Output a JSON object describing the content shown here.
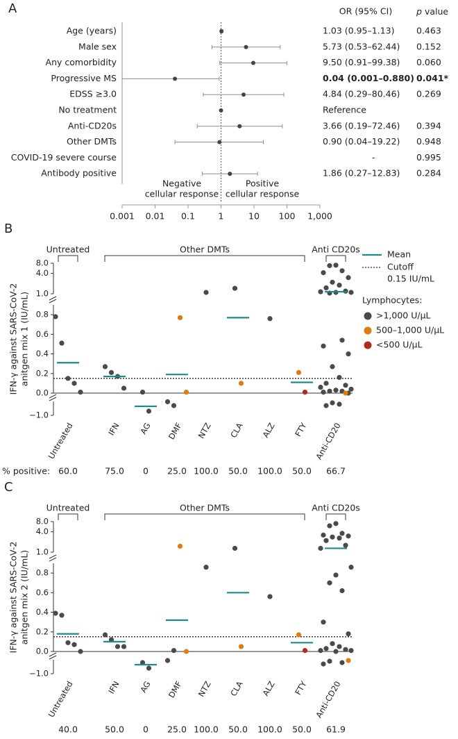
{
  "chart_data": [
    {
      "type": "forest",
      "panel": "A",
      "ci_header": "OR (95% CI)",
      "p_header": [
        "p",
        "value"
      ],
      "categories": [
        "Age (years)",
        "Male sex",
        "Any comorbidity",
        "Progressive MS",
        "EDSS ≥3.0",
        "No treatment",
        "Anti-CD20s",
        "Other DMTs",
        "COVID-19 severe course",
        "Antibody positive"
      ],
      "values": [
        1.03,
        5.73,
        9.5,
        0.04,
        4.84,
        1,
        3.66,
        0.9,
        null,
        1.86
      ],
      "lower": [
        0.95,
        0.53,
        0.91,
        0.001,
        0.29,
        null,
        0.19,
        0.04,
        null,
        0.27
      ],
      "upper": [
        1.13,
        62.44,
        99.38,
        0.88,
        80.46,
        null,
        72.46,
        19.22,
        null,
        12.83
      ],
      "ci_labels": [
        "1.03 (0.95–1.13)",
        "5.73 (0.53–62.44)",
        "9.50 (0.91–99.38)",
        "0.04 (0.001–0.880)",
        "4.84 (0.29–80.46)",
        "Reference",
        "3.66 (0.19–72.46)",
        "0.90 (0.04–19.22)",
        "-",
        "1.86 (0.27–12.83)"
      ],
      "p_values": [
        "0.463",
        "0.152",
        "0.060",
        "0.041*",
        "0.269",
        null,
        "0.394",
        "0.948",
        "0.995",
        "0.284"
      ],
      "bold_rows": [
        3
      ],
      "annotations": [
        [
          "Negative",
          "cellular response"
        ],
        [
          "Positive",
          "cellular response"
        ]
      ],
      "refline": 1,
      "log": true,
      "xlim": [
        0.001,
        1000
      ],
      "xticks": [
        0.001,
        0.01,
        0.1,
        1,
        10,
        100,
        {
          "value": 1000,
          "label": "1,000"
        }
      ],
      "color": "#444444",
      "ci_color": "#8c8c8c"
    },
    {
      "type": "strip",
      "panel": "B",
      "groups": [
        {
          "label": "Untreated",
          "first": 0,
          "last": 0
        },
        {
          "label": "Other DMTs",
          "first": 1,
          "last": 7
        },
        {
          "label": "Anti CD20s",
          "first": 8,
          "last": 8
        }
      ],
      "categories": [
        "Untreated",
        "IFN",
        "AG",
        "DMF",
        "NTZ",
        "CLA",
        "ALZ",
        "FTY",
        "Anti-CD20"
      ],
      "y_label": [
        "IFN-γ against SARS-CoV-2",
        "anitgen mix 1 (IU/mL)"
      ],
      "segments": [
        {
          "ylim": [
            1,
            8
          ],
          "log": true
        },
        {
          "ylim": [
            0,
            0.9
          ],
          "log": false
        },
        {
          "ylim": [
            -1,
            0
          ],
          "log": false
        }
      ],
      "yticks": [
        {
          "value": -1,
          "label": "−1.0"
        },
        {
          "value": 0,
          "label": "0.0"
        },
        0.2,
        0.4,
        0.6,
        0.8,
        {
          "value": 1,
          "label": "1.0"
        },
        {
          "value": 4,
          "label": "4.0"
        },
        {
          "value": 8,
          "label": "8.0"
        }
      ],
      "cutoff": 0.15,
      "cutoff_label": [
        "Cutoff",
        "0.15 IU/mL"
      ],
      "legend_title": "Lymphocytes:",
      "mean": {
        "name": "Mean",
        "color": "#1b8c8e",
        "values": [
          0.31,
          0.17,
          -0.35,
          0.19,
          null,
          0.77,
          null,
          0.11,
          1.15
        ]
      },
      "series": [
        {
          "name": ">1,000 U/μL",
          "color": "#4a4a4a",
          "values": [
            [
              0.78,
              0.51,
              0.15,
              0.1,
              0.01
            ],
            [
              0.27,
              0.21,
              0.17,
              0.05
            ],
            [
              0.01,
              -0.7
            ],
            [
              -0.02,
              -0.3
            ],
            [
              1.1
            ],
            [
              1.45
            ],
            [
              0.76
            ],
            [],
            [
              7.0,
              6.8,
              4.8,
              4.2,
              3.0,
              2.2,
              1.8,
              1.5,
              1.2,
              1.15,
              1.1,
              1.1,
              1.05,
              0.54,
              0.48,
              0.4,
              0.27,
              0.16,
              0.1,
              0.08,
              0.06,
              0.04,
              0.03,
              0.02,
              0.02,
              0.01,
              0.0,
              -0.1,
              -0.2,
              -0.3
            ]
          ]
        },
        {
          "name": "500–1,000 U/μL",
          "color": "#e07b12",
          "values": [
            [],
            [],
            [],
            [
              0.77,
              0.01
            ],
            [],
            [
              0.1
            ],
            [],
            [
              0.21
            ],
            [
              0.0
            ]
          ]
        },
        {
          "name": "<500 U/μL",
          "color": "#b22a1e",
          "values": [
            [],
            [],
            [],
            [],
            [],
            [],
            [],
            [
              0.01
            ],
            []
          ]
        }
      ],
      "percent_positive": {
        "label": "% positive:",
        "values": [
          60,
          75,
          0,
          25,
          100,
          50,
          100,
          50,
          66.7
        ],
        "value_labels": [
          "60.0",
          "75.0",
          "0",
          "25.0",
          "100.0",
          "50.0",
          "100.0",
          "50.0",
          "66.7"
        ]
      }
    },
    {
      "type": "strip",
      "panel": "C",
      "groups": [
        {
          "label": "Untreated",
          "first": 0,
          "last": 0
        },
        {
          "label": "Other DMTs",
          "first": 1,
          "last": 7
        },
        {
          "label": "Anti CD20s",
          "first": 8,
          "last": 8
        }
      ],
      "categories": [
        "Untreated",
        "IFN",
        "AG",
        "DMF",
        "NTZ",
        "CLA",
        "ALZ",
        "FTY",
        "Anti-CD20"
      ],
      "y_label": [
        "IFN-γ against SARS-CoV-2",
        "anitgen mix 2 (IU/mL)"
      ],
      "segments": [
        {
          "ylim": [
            1,
            8
          ],
          "log": true
        },
        {
          "ylim": [
            0,
            0.9
          ],
          "log": false
        },
        {
          "ylim": [
            -1,
            0
          ],
          "log": false
        }
      ],
      "yticks": [
        {
          "value": -1,
          "label": "−1.0"
        },
        {
          "value": 0,
          "label": "0.0"
        },
        0.2,
        0.4,
        0.6,
        0.8,
        {
          "value": 1,
          "label": "1.0"
        },
        {
          "value": 4,
          "label": "4.0"
        },
        {
          "value": 8,
          "label": "8.0"
        }
      ],
      "cutoff": 0.15,
      "mean": {
        "color": "#1b8c8e",
        "values": [
          0.18,
          0.1,
          -0.35,
          0.32,
          null,
          0.6,
          null,
          0.09,
          1.3
        ]
      },
      "series": [
        {
          "color": "#4a4a4a",
          "values": [
            [
              0.39,
              0.37,
              0.09,
              0.07,
              0.0
            ],
            [
              0.17,
              0.12,
              0.05,
              0.05
            ],
            [
              -0.2,
              -0.6
            ],
            [
              -0.05,
              0.01
            ],
            [
              0.86
            ],
            [
              1.3
            ],
            [
              0.56
            ],
            [],
            [
              7.0,
              6.0,
              3.6,
              3.2,
              3.0,
              2.8,
              2.6,
              2.2,
              1.6,
              1.3,
              0.86,
              0.78,
              0.7,
              0.62,
              0.3,
              0.18,
              0.08,
              0.05,
              0.03,
              0.02,
              0.01,
              0.01,
              0.0,
              -0.1,
              -0.2,
              -0.3
            ]
          ]
        },
        {
          "color": "#e07b12",
          "values": [
            [],
            [],
            [],
            [
              1.5,
              0.0
            ],
            [],
            [
              0.05
            ],
            [],
            [
              0.17
            ],
            [
              -0.05
            ]
          ]
        },
        {
          "color": "#b22a1e",
          "values": [
            [],
            [],
            [],
            [],
            [],
            [],
            [],
            [
              0.01
            ],
            []
          ]
        }
      ],
      "percent_positive": {
        "values": [
          40,
          50,
          0,
          25,
          100,
          50,
          100,
          50,
          61.9
        ],
        "value_labels": [
          "40.0",
          "50.0",
          "0",
          "25.0",
          "100.0",
          "50.0",
          "100.0",
          "50.0",
          "61.9"
        ]
      }
    }
  ]
}
